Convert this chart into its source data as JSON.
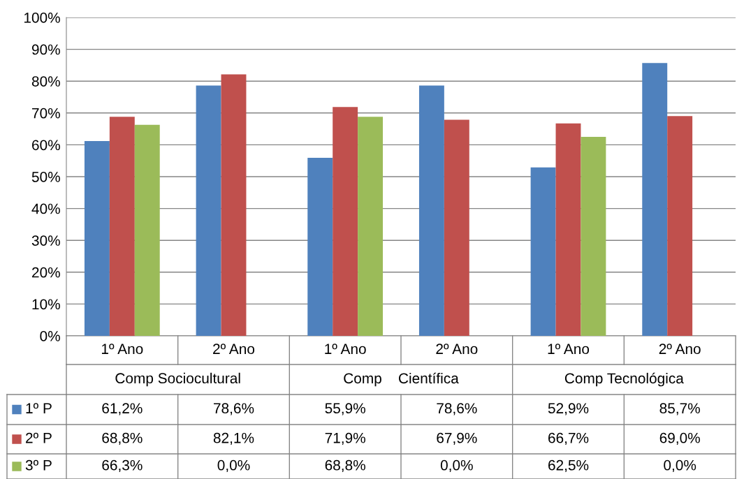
{
  "chart_data": {
    "type": "bar",
    "categories": [
      "1º Ano",
      "2º Ano",
      "1º Ano",
      "2º Ano",
      "1º Ano",
      "2º Ano"
    ],
    "annotations": [
      "Comp Sociocultural",
      "Comp    Científica",
      "Comp Tecnológica"
    ],
    "series": [
      {
        "name": "1º P",
        "color": "#4f81bd",
        "values": [
          61.2,
          78.6,
          55.9,
          78.6,
          52.9,
          85.7
        ],
        "value_labels": [
          "61,2%",
          "78,6%",
          "55,9%",
          "78,6%",
          "52,9%",
          "85,7%"
        ]
      },
      {
        "name": "2º P",
        "color": "#c0504d",
        "values": [
          68.8,
          82.1,
          71.9,
          67.9,
          66.7,
          69.0
        ],
        "value_labels": [
          "68,8%",
          "82,1%",
          "71,9%",
          "67,9%",
          "66,7%",
          "69,0%"
        ]
      },
      {
        "name": "3º P",
        "color": "#9bbb59",
        "values": [
          66.3,
          0.0,
          68.8,
          0.0,
          62.5,
          0.0
        ],
        "value_labels": [
          "66,3%",
          "0,0%",
          "68,8%",
          "0,0%",
          "62,5%",
          "0,0%"
        ]
      }
    ],
    "ylim": [
      0,
      100
    ],
    "yticks": [
      {
        "value": 0,
        "label": "0%"
      },
      {
        "value": 10,
        "label": "10%"
      },
      {
        "value": 20,
        "label": "20%"
      },
      {
        "value": 30,
        "label": "30%"
      },
      {
        "value": 40,
        "label": "40%"
      },
      {
        "value": 50,
        "label": "50%"
      },
      {
        "value": 60,
        "label": "60%"
      },
      {
        "value": 70,
        "label": "70%"
      },
      {
        "value": 80,
        "label": "80%"
      },
      {
        "value": 90,
        "label": "90%"
      },
      {
        "value": 100,
        "label": "100%"
      }
    ],
    "grid": "y",
    "legend": "bottom left"
  }
}
